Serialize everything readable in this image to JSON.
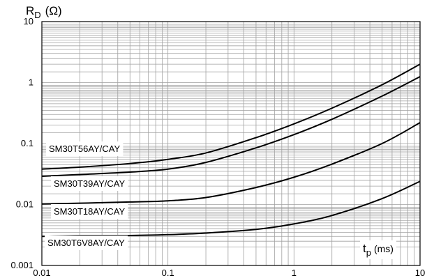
{
  "chart_data": {
    "type": "line",
    "xlabel": {
      "main": "t",
      "sub": "p",
      "unit": "(ms)"
    },
    "ylabel": {
      "main": "R",
      "sub": "D",
      "unit": "(Ω)"
    },
    "x_scale": "log",
    "y_scale": "log",
    "xlim": [
      0.01,
      10
    ],
    "ylim": [
      0.001,
      10
    ],
    "x_ticks": [
      {
        "value": 0.01,
        "label": "0.01"
      },
      {
        "value": 0.1,
        "label": "0.1"
      },
      {
        "value": 1,
        "label": "1"
      },
      {
        "value": 10,
        "label": "10"
      }
    ],
    "y_ticks": [
      {
        "value": 0.001,
        "label": "0.001"
      },
      {
        "value": 0.01,
        "label": "0.01"
      },
      {
        "value": 0.1,
        "label": "0.1"
      },
      {
        "value": 1,
        "label": "1"
      },
      {
        "value": 10,
        "label": "10"
      }
    ],
    "grid": true,
    "line_color": "#000000",
    "grid_color": "#a0a0a0",
    "series": [
      {
        "name": "SM30T56AY/CAY",
        "x": [
          0.01,
          0.02,
          0.05,
          0.1,
          0.2,
          0.5,
          1,
          2,
          5,
          10
        ],
        "y": [
          0.038,
          0.041,
          0.047,
          0.055,
          0.07,
          0.125,
          0.21,
          0.38,
          0.92,
          2.0
        ]
      },
      {
        "name": "SM30T39AY/CAY",
        "x": [
          0.01,
          0.02,
          0.05,
          0.1,
          0.2,
          0.5,
          1,
          2,
          5,
          10
        ],
        "y": [
          0.029,
          0.031,
          0.034,
          0.038,
          0.049,
          0.085,
          0.14,
          0.25,
          0.6,
          1.25
        ]
      },
      {
        "name": "SM30T18AY/CAY",
        "x": [
          0.01,
          0.02,
          0.05,
          0.1,
          0.2,
          0.5,
          1,
          2,
          5,
          10
        ],
        "y": [
          0.0102,
          0.0105,
          0.011,
          0.0115,
          0.013,
          0.019,
          0.028,
          0.046,
          0.1,
          0.22
        ]
      },
      {
        "name": "SM30T6V8AY/CAY",
        "x": [
          0.01,
          0.02,
          0.05,
          0.1,
          0.2,
          0.5,
          1,
          2,
          5,
          10
        ],
        "y": [
          0.003,
          0.0031,
          0.0031,
          0.0032,
          0.0034,
          0.0039,
          0.0048,
          0.0066,
          0.0125,
          0.024
        ]
      }
    ]
  }
}
